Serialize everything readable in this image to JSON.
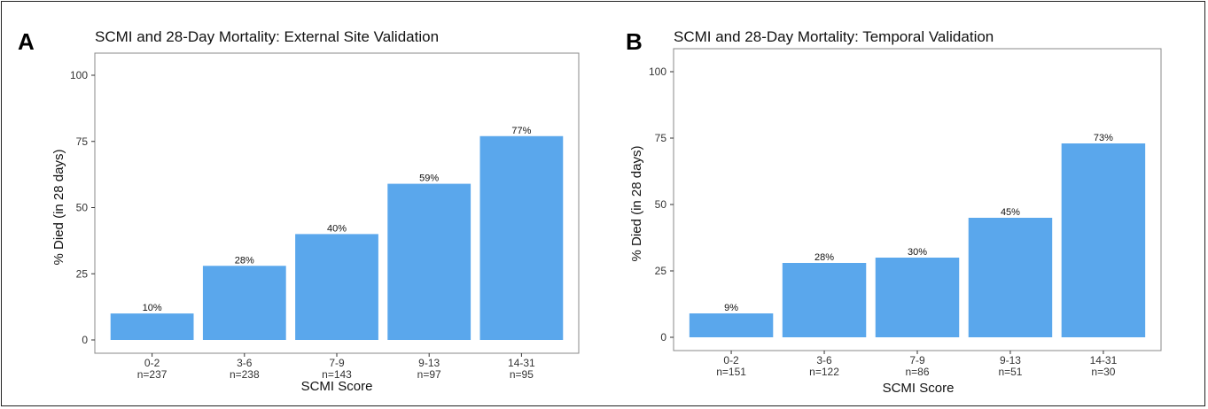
{
  "style": {
    "bar_color": "#5aa7ec",
    "panel_border": "#888888",
    "frame_border": "#222222"
  },
  "chart_data": [
    {
      "type": "bar",
      "panel": "A",
      "title": "SCMI and 28-Day Mortality: External Site Validation",
      "xlabel": "SCMI Score",
      "ylabel": "% Died (in 28 days)",
      "ylim": [
        0,
        100
      ],
      "yticks": [
        0,
        25,
        50,
        75,
        100
      ],
      "grid": false,
      "categories": [
        "0-2",
        "3-6",
        "7-9",
        "9-13",
        "14-31"
      ],
      "n_labels": [
        "n=237",
        "n=238",
        "n=143",
        "n=97",
        "n=95"
      ],
      "values": [
        10,
        28,
        40,
        59,
        77
      ],
      "value_labels": [
        "10%",
        "28%",
        "40%",
        "59%",
        "77%"
      ]
    },
    {
      "type": "bar",
      "panel": "B",
      "title": "SCMI and 28-Day Mortality: Temporal Validation",
      "xlabel": "SCMI Score",
      "ylabel": "% Died (in 28 days)",
      "ylim": [
        0,
        100
      ],
      "yticks": [
        0,
        25,
        50,
        75,
        100
      ],
      "grid": false,
      "categories": [
        "0-2",
        "3-6",
        "7-9",
        "9-13",
        "14-31"
      ],
      "n_labels": [
        "n=151",
        "n=122",
        "n=86",
        "n=51",
        "n=30"
      ],
      "values": [
        9,
        28,
        30,
        45,
        73
      ],
      "value_labels": [
        "9%",
        "28%",
        "30%",
        "45%",
        "73%"
      ]
    }
  ]
}
